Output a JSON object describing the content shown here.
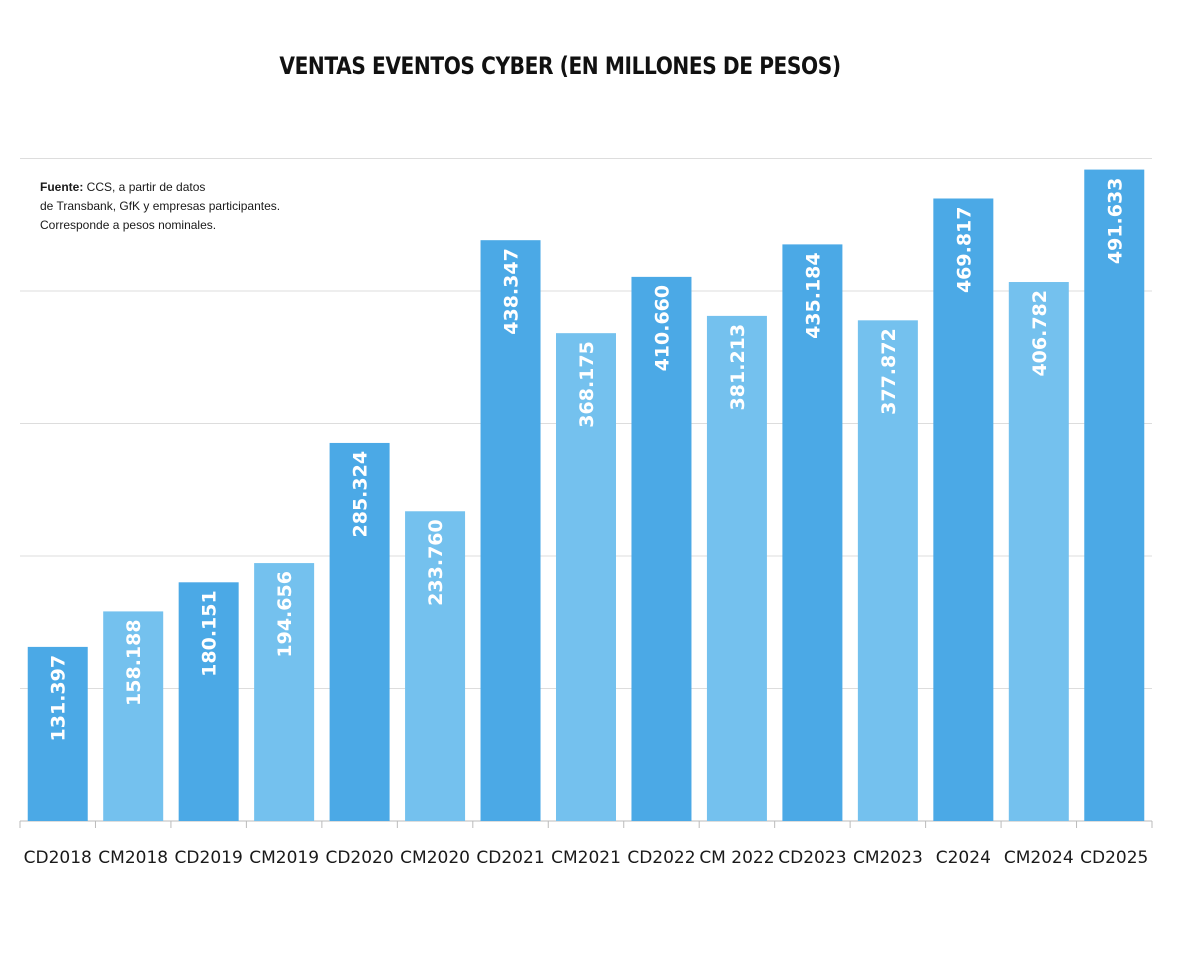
{
  "chart_data": {
    "type": "bar",
    "title": "VENTAS EVENTOS CYBER (EN MILLONES DE PESOS)",
    "xlabel": "",
    "ylabel": "",
    "ylim": [
      0,
      500000
    ],
    "grid": true,
    "categories": [
      "CD2018",
      "CM2018",
      "CD2019",
      "CM2019",
      "CD2020",
      "CM2020",
      "CD2021",
      "CM2021",
      "CD2022",
      "CM 2022",
      "CD2023",
      "CM2023",
      "C2024",
      "CM2024",
      "CD2025"
    ],
    "values": [
      131397,
      158188,
      180151,
      194656,
      285324,
      233760,
      438347,
      368175,
      410660,
      381213,
      435184,
      377872,
      469817,
      406782,
      491633
    ],
    "value_labels": [
      "131.397",
      "158.188",
      "180.151",
      "194.656",
      "285.324",
      "233.760",
      "438.347",
      "368.175",
      "410.660",
      "381.213",
      "435.184",
      "377.872",
      "469.817",
      "406.782",
      "491.633"
    ],
    "bar_colors": [
      "#4ba9e6",
      "#74c1ee",
      "#4ba9e6",
      "#74c1ee",
      "#4ba9e6",
      "#74c1ee",
      "#4ba9e6",
      "#74c1ee",
      "#4ba9e6",
      "#74c1ee",
      "#4ba9e6",
      "#74c1ee",
      "#4ba9e6",
      "#74c1ee",
      "#4ba9e6"
    ],
    "colors": {
      "dark_bar": "#4ba9e6",
      "light_bar": "#74c1ee",
      "grid": "#dddddd",
      "label_text": "#ffffff"
    }
  },
  "note": {
    "source_label": "Fuente:",
    "source_text": " CCS, a partir de datos",
    "line2": "de Transbank,  GfK y empresas participantes.",
    "line3": "Corresponde a pesos nominales."
  }
}
